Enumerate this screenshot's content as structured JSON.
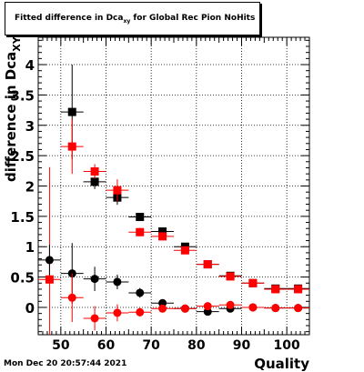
{
  "chart_data": {
    "type": "scatter",
    "title": "Fitted difference in Dca",
    "title_subscript": "xy",
    "title_suffix": " for Global Rec Pion NoHits",
    "xlabel": "Quality",
    "ylabel": "difference in Dca",
    "ylabel_subscript": "XY",
    "xlim": [
      45,
      105
    ],
    "ylim": [
      -0.45,
      4.45
    ],
    "x_ticks": [
      "50",
      "60",
      "70",
      "80",
      "90",
      "100"
    ],
    "y_ticks": [
      "0",
      "0.5",
      "1",
      "1.5",
      "2",
      "2.5",
      "3",
      "3.5",
      "4"
    ],
    "grid": true,
    "series": [
      {
        "marker": "square",
        "color": "#000000",
        "points": [
          {
            "x": 52.5,
            "y": 3.22,
            "xerr": 2.5,
            "yerr": 0.78
          },
          {
            "x": 57.5,
            "y": 2.07,
            "xerr": 2.5,
            "yerr": 0.12
          },
          {
            "x": 62.5,
            "y": 1.81,
            "xerr": 2.5,
            "yerr": 0.12
          },
          {
            "x": 67.5,
            "y": 1.49,
            "xerr": 2.5,
            "yerr": 0.06
          },
          {
            "x": 72.5,
            "y": 1.25,
            "xerr": 2.5,
            "yerr": 0.04
          },
          {
            "x": 77.5,
            "y": 1.0,
            "xerr": 2.5,
            "yerr": 0.03
          },
          {
            "x": 82.5,
            "y": 0.71,
            "xerr": 2.5,
            "yerr": 0.02
          },
          {
            "x": 87.5,
            "y": 0.52,
            "xerr": 2.5,
            "yerr": 0.02
          },
          {
            "x": 92.5,
            "y": 0.4,
            "xerr": 2.5,
            "yerr": 0.02
          },
          {
            "x": 97.5,
            "y": 0.31,
            "xerr": 2.5,
            "yerr": 0.02
          },
          {
            "x": 102.5,
            "y": 0.31,
            "xerr": 2.5,
            "yerr": 0.02
          }
        ]
      },
      {
        "marker": "square",
        "color": "#ff0000",
        "points": [
          {
            "x": 47.5,
            "y": 0.46,
            "xerr": 2.5,
            "yerr": 1.85
          },
          {
            "x": 52.5,
            "y": 2.65,
            "xerr": 2.5,
            "yerr": 0.45
          },
          {
            "x": 57.5,
            "y": 2.24,
            "xerr": 2.5,
            "yerr": 0.12
          },
          {
            "x": 62.5,
            "y": 1.93,
            "xerr": 2.5,
            "yerr": 0.18
          },
          {
            "x": 67.5,
            "y": 1.24,
            "xerr": 2.5,
            "yerr": 0.07
          },
          {
            "x": 72.5,
            "y": 1.17,
            "xerr": 2.5,
            "yerr": 0.05
          },
          {
            "x": 77.5,
            "y": 0.94,
            "xerr": 2.5,
            "yerr": 0.03
          },
          {
            "x": 82.5,
            "y": 0.71,
            "xerr": 2.5,
            "yerr": 0.02
          },
          {
            "x": 87.5,
            "y": 0.51,
            "xerr": 2.5,
            "yerr": 0.02
          },
          {
            "x": 92.5,
            "y": 0.4,
            "xerr": 2.5,
            "yerr": 0.02
          },
          {
            "x": 97.5,
            "y": 0.3,
            "xerr": 2.5,
            "yerr": 0.02
          },
          {
            "x": 102.5,
            "y": 0.3,
            "xerr": 2.5,
            "yerr": 0.02
          }
        ]
      },
      {
        "marker": "circle",
        "color": "#000000",
        "points": [
          {
            "x": 47.5,
            "y": 0.78,
            "xerr": 2.5,
            "yerr": 0.25
          },
          {
            "x": 52.5,
            "y": 0.56,
            "xerr": 2.5,
            "yerr": 0.5
          },
          {
            "x": 57.5,
            "y": 0.47,
            "xerr": 2.5,
            "yerr": 0.2
          },
          {
            "x": 62.5,
            "y": 0.42,
            "xerr": 2.5,
            "yerr": 0.12
          },
          {
            "x": 67.5,
            "y": 0.24,
            "xerr": 2.5,
            "yerr": 0.08
          },
          {
            "x": 72.5,
            "y": 0.07,
            "xerr": 2.5,
            "yerr": 0.05
          },
          {
            "x": 77.5,
            "y": -0.02,
            "xerr": 2.5,
            "yerr": 0.03
          },
          {
            "x": 82.5,
            "y": -0.07,
            "xerr": 2.5,
            "yerr": 0.02
          },
          {
            "x": 87.5,
            "y": -0.02,
            "xerr": 2.5,
            "yerr": 0.02
          },
          {
            "x": 92.5,
            "y": 0.0,
            "xerr": 2.5,
            "yerr": 0.02
          },
          {
            "x": 97.5,
            "y": -0.01,
            "xerr": 2.5,
            "yerr": 0.02
          },
          {
            "x": 102.5,
            "y": -0.01,
            "xerr": 2.5,
            "yerr": 0.02
          }
        ]
      },
      {
        "marker": "circle",
        "color": "#ff0000",
        "points": [
          {
            "x": 52.5,
            "y": 0.16,
            "xerr": 2.5,
            "yerr": 0.4
          },
          {
            "x": 57.5,
            "y": -0.18,
            "xerr": 2.5,
            "yerr": 0.2
          },
          {
            "x": 62.5,
            "y": -0.09,
            "xerr": 2.5,
            "yerr": 0.14
          },
          {
            "x": 67.5,
            "y": -0.08,
            "xerr": 2.5,
            "yerr": 0.07
          },
          {
            "x": 72.5,
            "y": -0.02,
            "xerr": 2.5,
            "yerr": 0.04
          },
          {
            "x": 77.5,
            "y": -0.02,
            "xerr": 2.5,
            "yerr": 0.03
          },
          {
            "x": 82.5,
            "y": 0.02,
            "xerr": 2.5,
            "yerr": 0.02
          },
          {
            "x": 87.5,
            "y": 0.04,
            "xerr": 2.5,
            "yerr": 0.02
          },
          {
            "x": 92.5,
            "y": 0.0,
            "xerr": 2.5,
            "yerr": 0.02
          },
          {
            "x": 97.5,
            "y": -0.01,
            "xerr": 2.5,
            "yerr": 0.02
          },
          {
            "x": 102.5,
            "y": -0.01,
            "xerr": 2.5,
            "yerr": 0.02
          }
        ]
      }
    ]
  },
  "footer": {
    "timestamp": "Mon Dec 20 20:57:44 2021"
  }
}
